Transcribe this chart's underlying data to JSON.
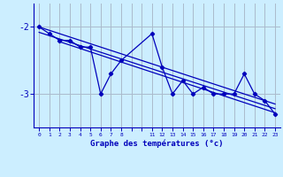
{
  "xlabel": "Graphe des températures (°c)",
  "background_color": "#cceeff",
  "grid_color": "#aabbcc",
  "line_color": "#0000bb",
  "xlim": [
    -0.5,
    23.5
  ],
  "ylim": [
    -3.5,
    -1.65
  ],
  "yticks": [
    -3.0,
    -2.0
  ],
  "ytick_labels": [
    "-3",
    "-2"
  ],
  "hours": [
    0,
    1,
    2,
    3,
    4,
    5,
    6,
    7,
    8,
    11,
    12,
    13,
    14,
    15,
    16,
    17,
    18,
    19,
    20,
    21,
    22,
    23
  ],
  "temps": [
    -2.0,
    -2.1,
    -2.2,
    -2.2,
    -2.3,
    -2.3,
    -3.0,
    -2.7,
    -2.5,
    -2.1,
    -2.6,
    -3.0,
    -2.8,
    -3.0,
    -2.9,
    -3.0,
    -3.0,
    -3.0,
    -2.7,
    -3.0,
    -3.1,
    -3.3
  ],
  "trend1_x": [
    0,
    23
  ],
  "trend1_y": [
    -2.0,
    -3.15
  ],
  "trend2_x": [
    0,
    23
  ],
  "trend2_y": [
    -2.08,
    -3.22
  ],
  "trend3_x": [
    2,
    23
  ],
  "trend3_y": [
    -2.22,
    -3.28
  ]
}
